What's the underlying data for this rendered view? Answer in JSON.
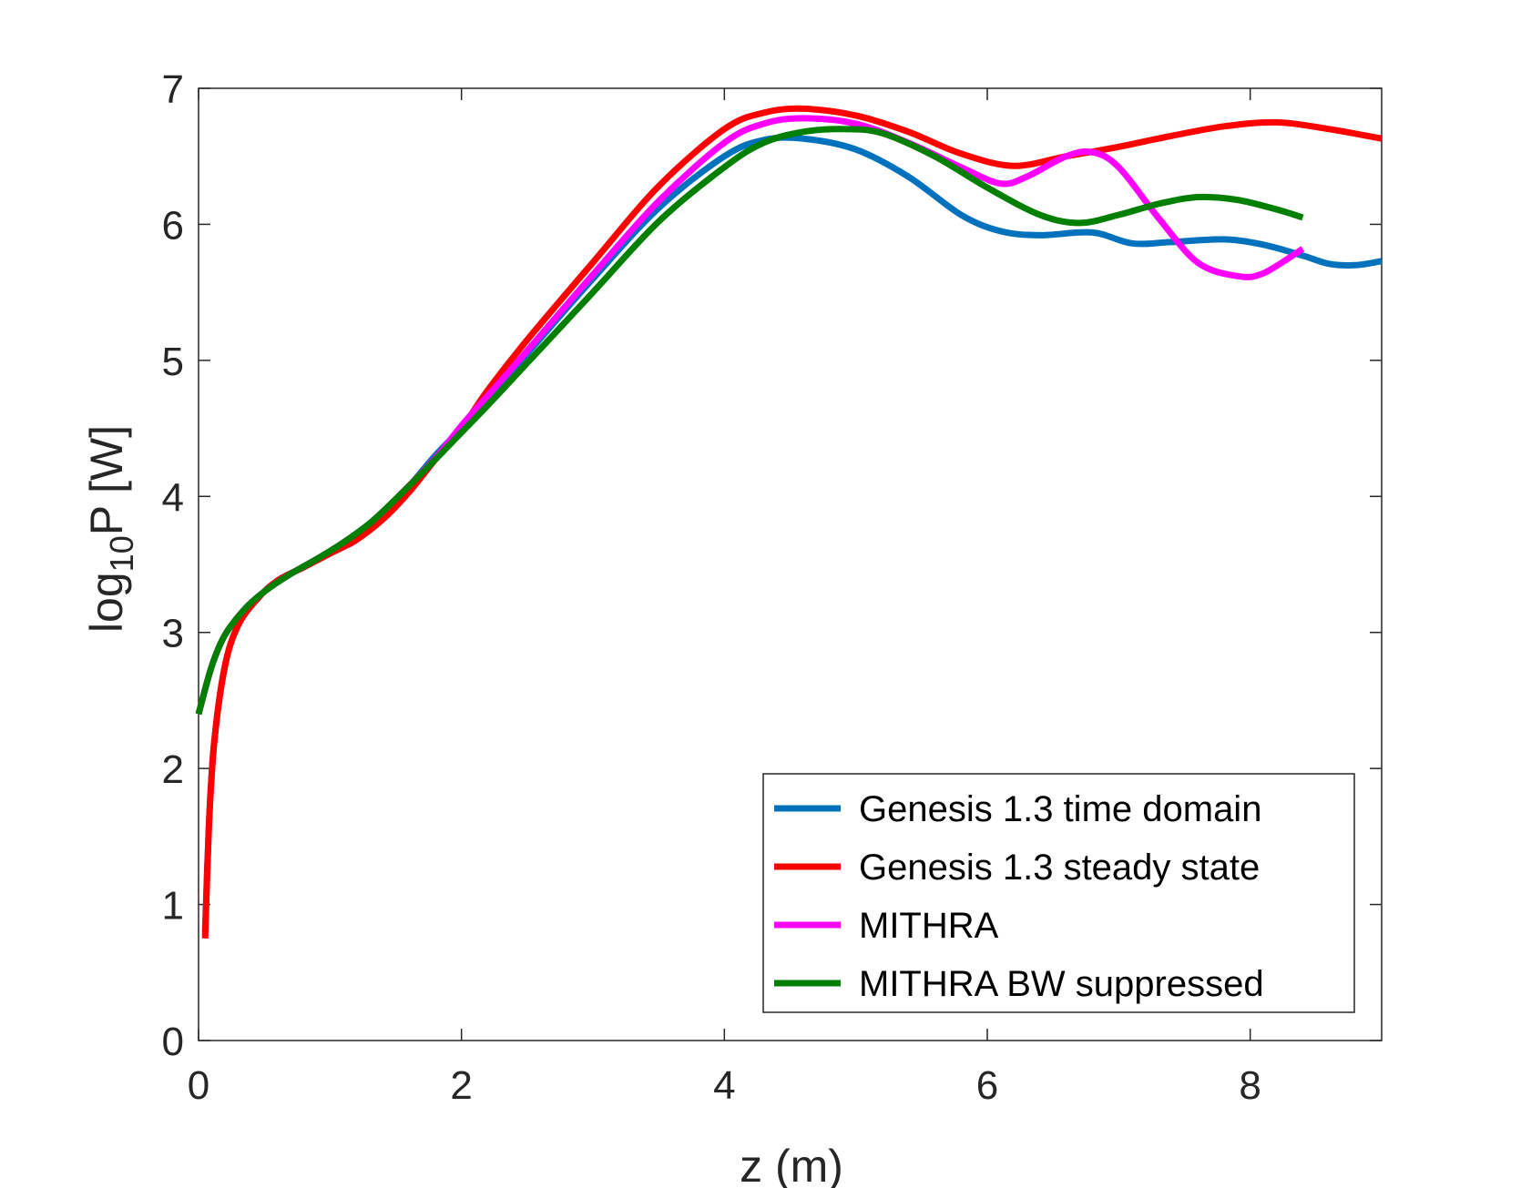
{
  "chart_data": {
    "type": "line",
    "xlabel": "z (m)",
    "ylabel": {
      "base": "log",
      "sub": "10",
      "rest": "P [W]"
    },
    "xlim": [
      0,
      9
    ],
    "ylim": [
      0,
      7
    ],
    "xticks": [
      0,
      2,
      4,
      6,
      8
    ],
    "yticks": [
      0,
      1,
      2,
      3,
      4,
      5,
      6,
      7
    ],
    "grid": false,
    "legend_position": "bottom-right",
    "series": [
      {
        "name": "Genesis 1.3 time domain",
        "color": "#0072BD",
        "points": [
          [
            0.05,
            0.8
          ],
          [
            0.08,
            1.6
          ],
          [
            0.12,
            2.2
          ],
          [
            0.2,
            2.75
          ],
          [
            0.3,
            3.05
          ],
          [
            0.45,
            3.25
          ],
          [
            0.6,
            3.38
          ],
          [
            0.8,
            3.48
          ],
          [
            1.0,
            3.58
          ],
          [
            1.1,
            3.63
          ],
          [
            1.2,
            3.68
          ],
          [
            1.4,
            3.85
          ],
          [
            1.6,
            4.07
          ],
          [
            1.8,
            4.3
          ],
          [
            2.0,
            4.5
          ],
          [
            2.2,
            4.72
          ],
          [
            2.5,
            5.05
          ],
          [
            3.0,
            5.6
          ],
          [
            3.5,
            6.12
          ],
          [
            4.0,
            6.5
          ],
          [
            4.3,
            6.62
          ],
          [
            4.6,
            6.63
          ],
          [
            5.0,
            6.55
          ],
          [
            5.4,
            6.35
          ],
          [
            5.8,
            6.07
          ],
          [
            6.1,
            5.95
          ],
          [
            6.4,
            5.92
          ],
          [
            6.8,
            5.94
          ],
          [
            7.1,
            5.86
          ],
          [
            7.4,
            5.87
          ],
          [
            7.8,
            5.89
          ],
          [
            8.1,
            5.85
          ],
          [
            8.4,
            5.77
          ],
          [
            8.6,
            5.71
          ],
          [
            8.8,
            5.7
          ],
          [
            9.0,
            5.73
          ]
        ]
      },
      {
        "name": "Genesis 1.3 steady state",
        "color": "#FF0000",
        "points": [
          [
            0.05,
            0.75
          ],
          [
            0.08,
            1.6
          ],
          [
            0.12,
            2.2
          ],
          [
            0.2,
            2.75
          ],
          [
            0.3,
            3.05
          ],
          [
            0.45,
            3.25
          ],
          [
            0.6,
            3.38
          ],
          [
            0.8,
            3.48
          ],
          [
            1.0,
            3.58
          ],
          [
            1.2,
            3.68
          ],
          [
            1.4,
            3.83
          ],
          [
            1.6,
            4.03
          ],
          [
            1.8,
            4.27
          ],
          [
            2.0,
            4.5
          ],
          [
            2.2,
            4.78
          ],
          [
            2.5,
            5.15
          ],
          [
            3.0,
            5.72
          ],
          [
            3.5,
            6.28
          ],
          [
            4.0,
            6.7
          ],
          [
            4.3,
            6.82
          ],
          [
            4.6,
            6.85
          ],
          [
            5.0,
            6.8
          ],
          [
            5.4,
            6.68
          ],
          [
            5.8,
            6.52
          ],
          [
            6.2,
            6.43
          ],
          [
            6.6,
            6.5
          ],
          [
            7.0,
            6.57
          ],
          [
            7.4,
            6.65
          ],
          [
            7.8,
            6.72
          ],
          [
            8.2,
            6.75
          ],
          [
            8.6,
            6.7
          ],
          [
            9.0,
            6.63
          ]
        ]
      },
      {
        "name": "MITHRA",
        "color": "#FF00FF",
        "points": [
          [
            0.0,
            2.4
          ],
          [
            0.1,
            2.75
          ],
          [
            0.2,
            2.98
          ],
          [
            0.35,
            3.17
          ],
          [
            0.5,
            3.3
          ],
          [
            0.7,
            3.43
          ],
          [
            0.9,
            3.54
          ],
          [
            1.1,
            3.66
          ],
          [
            1.3,
            3.8
          ],
          [
            1.5,
            3.98
          ],
          [
            1.8,
            4.28
          ],
          [
            2.0,
            4.52
          ],
          [
            2.2,
            4.74
          ],
          [
            2.5,
            5.07
          ],
          [
            3.0,
            5.63
          ],
          [
            3.5,
            6.17
          ],
          [
            4.0,
            6.6
          ],
          [
            4.3,
            6.74
          ],
          [
            4.6,
            6.78
          ],
          [
            5.0,
            6.74
          ],
          [
            5.4,
            6.6
          ],
          [
            5.8,
            6.42
          ],
          [
            6.1,
            6.3
          ],
          [
            6.3,
            6.35
          ],
          [
            6.6,
            6.5
          ],
          [
            6.8,
            6.53
          ],
          [
            7.0,
            6.42
          ],
          [
            7.3,
            6.05
          ],
          [
            7.6,
            5.72
          ],
          [
            7.9,
            5.62
          ],
          [
            8.1,
            5.64
          ],
          [
            8.4,
            5.82
          ]
        ]
      },
      {
        "name": "MITHRA BW suppressed",
        "color": "#007F00",
        "points": [
          [
            0.0,
            2.4
          ],
          [
            0.1,
            2.75
          ],
          [
            0.2,
            2.98
          ],
          [
            0.35,
            3.17
          ],
          [
            0.5,
            3.3
          ],
          [
            0.7,
            3.43
          ],
          [
            0.9,
            3.54
          ],
          [
            1.1,
            3.66
          ],
          [
            1.3,
            3.8
          ],
          [
            1.5,
            3.98
          ],
          [
            1.8,
            4.27
          ],
          [
            2.0,
            4.47
          ],
          [
            2.2,
            4.67
          ],
          [
            2.5,
            4.98
          ],
          [
            3.0,
            5.5
          ],
          [
            3.5,
            6.02
          ],
          [
            4.0,
            6.42
          ],
          [
            4.3,
            6.6
          ],
          [
            4.6,
            6.68
          ],
          [
            4.9,
            6.7
          ],
          [
            5.2,
            6.67
          ],
          [
            5.6,
            6.5
          ],
          [
            6.0,
            6.27
          ],
          [
            6.4,
            6.07
          ],
          [
            6.7,
            6.01
          ],
          [
            7.0,
            6.07
          ],
          [
            7.3,
            6.15
          ],
          [
            7.6,
            6.2
          ],
          [
            7.9,
            6.18
          ],
          [
            8.2,
            6.11
          ],
          [
            8.4,
            6.05
          ]
        ]
      }
    ]
  }
}
